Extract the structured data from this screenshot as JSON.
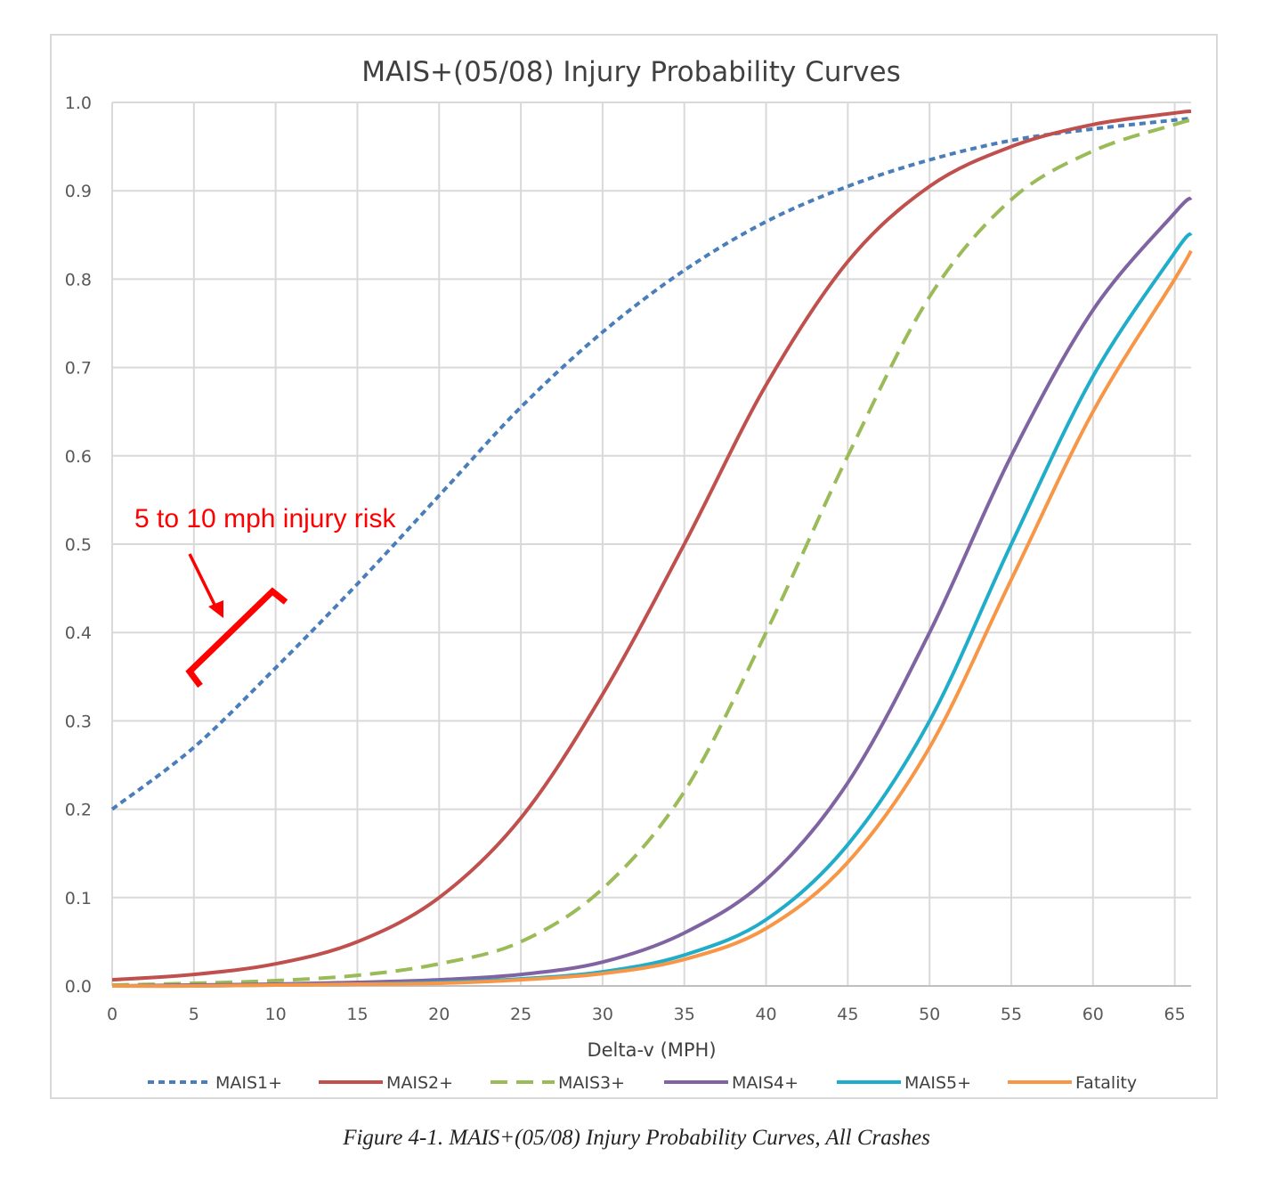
{
  "caption": "Figure 4-1. MAIS+(05/08) Injury Probability Curves, All Crashes",
  "chart_data": {
    "type": "line",
    "title": "MAIS+(05/08) Injury Probability Curves",
    "xlabel": "Delta-v (MPH)",
    "ylabel": "",
    "xlim": [
      0,
      66
    ],
    "ylim": [
      0,
      1.0
    ],
    "xticks": [
      0,
      5,
      10,
      15,
      20,
      25,
      30,
      35,
      40,
      45,
      50,
      55,
      60,
      65
    ],
    "yticks": [
      "0.0",
      "0.1",
      "0.2",
      "0.3",
      "0.4",
      "0.5",
      "0.6",
      "0.7",
      "0.8",
      "0.9",
      "1.0"
    ],
    "grid": true,
    "legend_position": "bottom",
    "x": [
      0,
      5,
      10,
      15,
      20,
      25,
      30,
      35,
      40,
      45,
      50,
      55,
      60,
      65,
      66
    ],
    "series": [
      {
        "name": "MAIS1+",
        "color": "#4a7ebb",
        "dash": "dotted",
        "values": [
          0.2,
          0.27,
          0.36,
          0.455,
          0.555,
          0.655,
          0.74,
          0.81,
          0.865,
          0.905,
          0.935,
          0.957,
          0.97,
          0.98,
          0.982
        ]
      },
      {
        "name": "MAIS2+",
        "color": "#c0504d",
        "dash": "solid",
        "values": [
          0.007,
          0.013,
          0.025,
          0.05,
          0.1,
          0.19,
          0.33,
          0.5,
          0.68,
          0.82,
          0.905,
          0.95,
          0.975,
          0.988,
          0.99
        ]
      },
      {
        "name": "MAIS3+",
        "color": "#9bbb59",
        "dash": "dashed",
        "values": [
          0.001,
          0.003,
          0.006,
          0.012,
          0.025,
          0.05,
          0.11,
          0.22,
          0.4,
          0.6,
          0.78,
          0.89,
          0.945,
          0.975,
          0.98
        ]
      },
      {
        "name": "MAIS4+",
        "color": "#8064a2",
        "dash": "solid",
        "values": [
          0.0,
          0.001,
          0.002,
          0.004,
          0.007,
          0.013,
          0.027,
          0.06,
          0.12,
          0.23,
          0.4,
          0.6,
          0.765,
          0.875,
          0.892
        ]
      },
      {
        "name": "MAIS5+",
        "color": "#1fadc9",
        "dash": "solid",
        "values": [
          0.0,
          0.0,
          0.001,
          0.002,
          0.004,
          0.008,
          0.016,
          0.035,
          0.075,
          0.16,
          0.3,
          0.5,
          0.69,
          0.83,
          0.852
        ]
      },
      {
        "name": "Fatality",
        "color": "#f79646",
        "dash": "solid",
        "values": [
          0.0,
          0.0,
          0.001,
          0.002,
          0.003,
          0.007,
          0.014,
          0.03,
          0.065,
          0.14,
          0.27,
          0.46,
          0.65,
          0.8,
          0.832
        ]
      }
    ],
    "annotation": {
      "text": "5 to 10 mph injury risk",
      "color": "#ff0000"
    }
  }
}
